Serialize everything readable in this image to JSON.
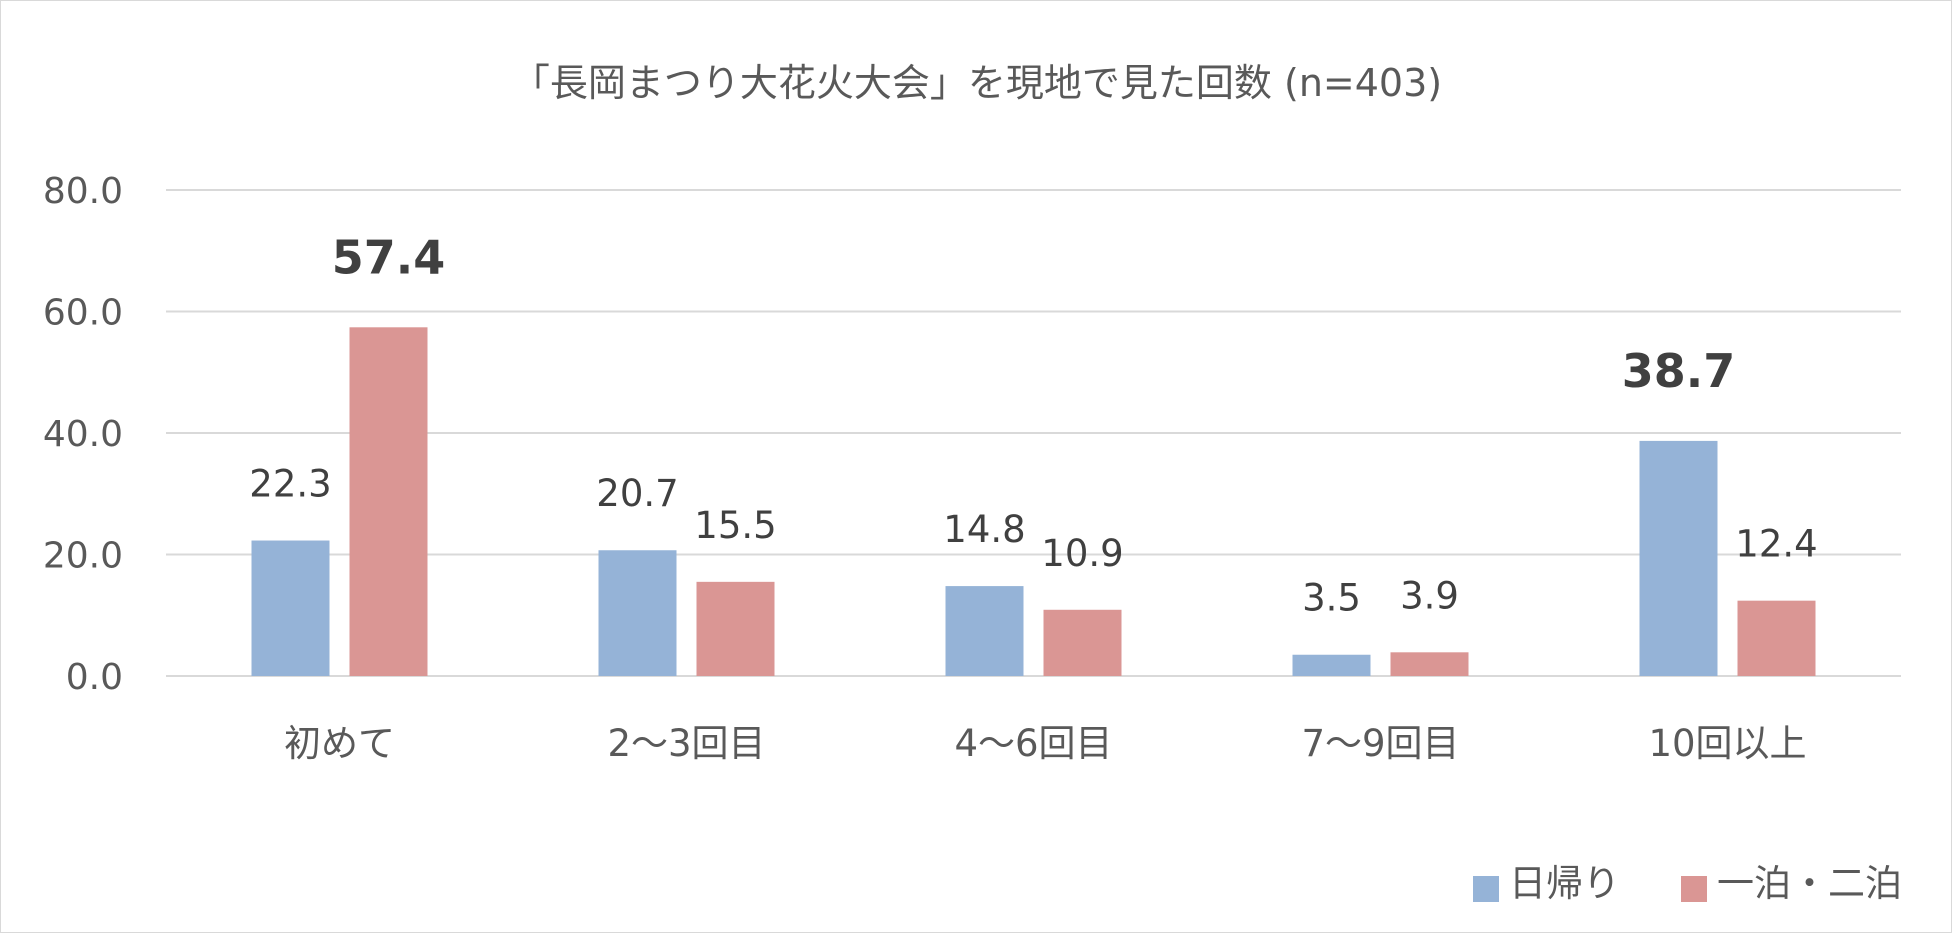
{
  "chart_data": {
    "type": "bar",
    "title": "「長岡まつり大花火大会」を現地で見た回数 (n=403)",
    "categories": [
      "初めて",
      "2～3回目",
      "4～6回目",
      "7～9回目",
      "10回以上"
    ],
    "series": [
      {
        "name": "日帰り",
        "color": "#95b3d7",
        "values": [
          22.3,
          20.7,
          14.8,
          3.5,
          38.7
        ],
        "labels": [
          "22.3",
          "20.7",
          "14.8",
          "3.5",
          "38.7"
        ],
        "bold": [
          false,
          false,
          false,
          false,
          true
        ]
      },
      {
        "name": "一泊・二泊",
        "color": "#da9694",
        "values": [
          57.4,
          15.5,
          10.9,
          3.9,
          12.4
        ],
        "labels": [
          "57.4",
          "15.5",
          "10.9",
          "3.9",
          "12.4"
        ],
        "bold": [
          true,
          false,
          false,
          false,
          false
        ]
      }
    ],
    "ylim": [
      0,
      80
    ],
    "yticks": [
      "0.0",
      "20.0",
      "40.0",
      "60.0",
      "80.0"
    ],
    "grid": true,
    "legend_position": "bottom-right"
  }
}
